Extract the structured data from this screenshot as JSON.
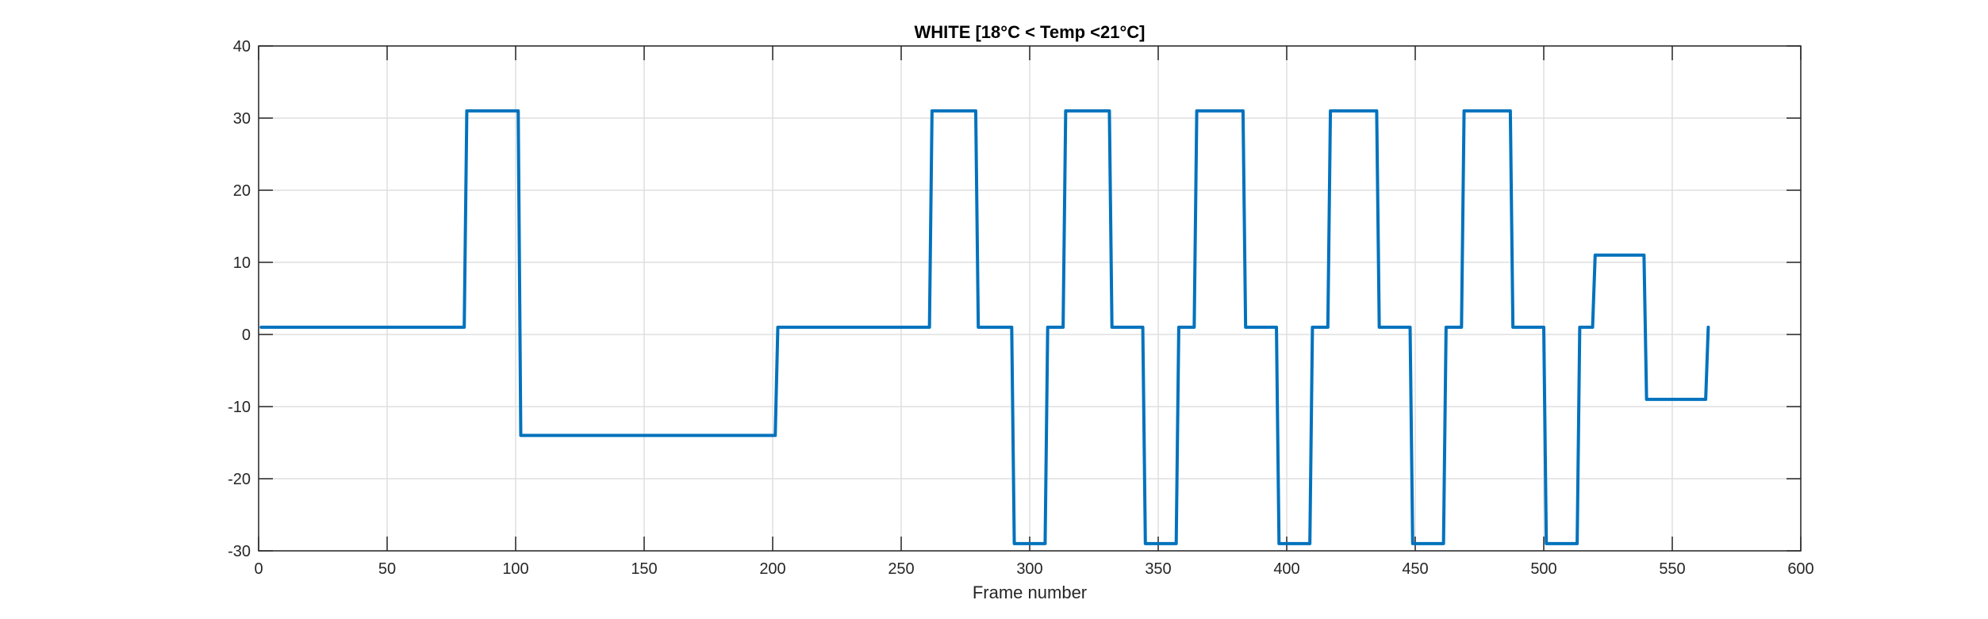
{
  "chart_data": {
    "type": "line",
    "title": "WHITE [18°C < Temp <21°C]",
    "xlabel": "Frame number",
    "ylabel": "",
    "xlim": [
      0,
      600
    ],
    "ylim": [
      -30,
      40
    ],
    "xticks": [
      0,
      50,
      100,
      150,
      200,
      250,
      300,
      350,
      400,
      450,
      500,
      550,
      600
    ],
    "yticks": [
      -30,
      -20,
      -10,
      0,
      10,
      20,
      30,
      40
    ],
    "grid": true,
    "series": [
      {
        "color": "#0072BD",
        "x": [
          1,
          80,
          81,
          101,
          102,
          201,
          202,
          261,
          262,
          279,
          280,
          293,
          294,
          306,
          307,
          313,
          314,
          331,
          332,
          344,
          345,
          357,
          358,
          364,
          365,
          383,
          384,
          396,
          397,
          409,
          410,
          416,
          417,
          435,
          436,
          448,
          449,
          461,
          462,
          468,
          469,
          487,
          488,
          500,
          501,
          513,
          514,
          519,
          520,
          539,
          540,
          563,
          564
        ],
        "y": [
          1,
          1,
          31,
          31,
          -14,
          -14,
          1,
          1,
          31,
          31,
          1,
          1,
          -29,
          -29,
          1,
          1,
          31,
          31,
          1,
          1,
          -29,
          -29,
          1,
          1,
          31,
          31,
          1,
          1,
          -29,
          -29,
          1,
          1,
          31,
          31,
          1,
          1,
          -29,
          -29,
          1,
          1,
          31,
          31,
          1,
          1,
          -29,
          -29,
          1,
          1,
          11,
          11,
          -9,
          -9,
          1
        ]
      }
    ]
  }
}
